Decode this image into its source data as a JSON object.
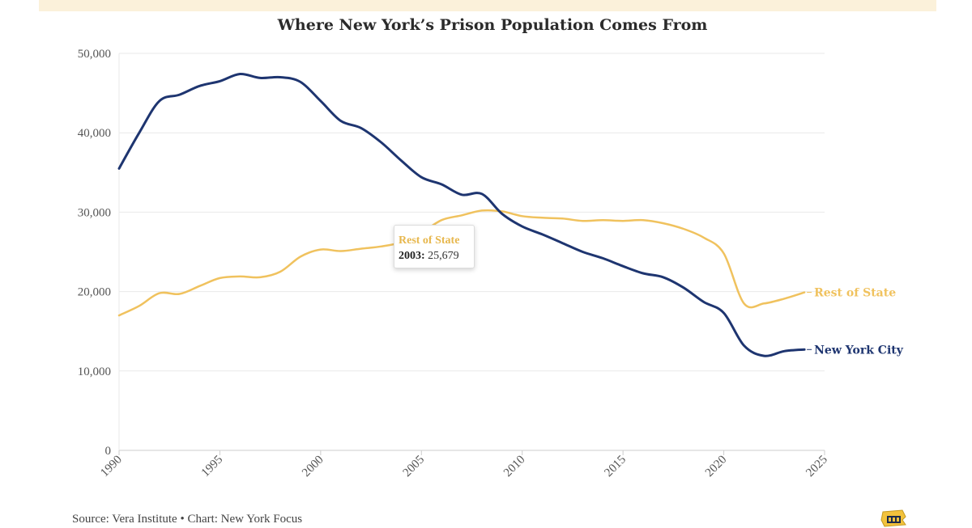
{
  "colors": {
    "new_york_city": "#1e3570",
    "rest_of_state": "#f0c25e",
    "grid": "#e9e9e9",
    "axis": "#cccccc"
  },
  "tooltip": {
    "series": "Rest of State",
    "year": "2003:",
    "value": "25,679"
  },
  "source": "Source: Vera Institute • Chart: New York Focus",
  "logo_icon": "new-york-focus-logo-icon",
  "chart_data": {
    "type": "line",
    "title": "Where New York’s Prison Population Comes From",
    "xlabel": "",
    "ylabel": "",
    "xlim": [
      1990,
      2025
    ],
    "ylim": [
      0,
      50000
    ],
    "x_ticks": [
      "1990",
      "1995",
      "2000",
      "2005",
      "2010",
      "2015",
      "2020",
      "2025"
    ],
    "y_ticks": [
      "0",
      "10,000",
      "20,000",
      "30,000",
      "40,000",
      "50,000"
    ],
    "grid": "horizontal",
    "legend": "end-of-line labels",
    "series": [
      {
        "name": "New York City",
        "x": [
          1990,
          1991,
          1992,
          1993,
          1994,
          1995,
          1996,
          1997,
          1998,
          1999,
          2000,
          2001,
          2002,
          2003,
          2004,
          2005,
          2006,
          2007,
          2008,
          2009,
          2010,
          2011,
          2012,
          2013,
          2014,
          2015,
          2016,
          2017,
          2018,
          2019,
          2020,
          2021,
          2022,
          2023,
          2024
        ],
        "values": [
          35500,
          40000,
          44000,
          44800,
          45900,
          46500,
          47400,
          46900,
          47000,
          46400,
          44000,
          41500,
          40600,
          38800,
          36500,
          34400,
          33500,
          32200,
          32300,
          29800,
          28200,
          27200,
          26100,
          25000,
          24200,
          23200,
          22300,
          21800,
          20500,
          18700,
          17300,
          13200,
          11900,
          12500,
          12700
        ]
      },
      {
        "name": "Rest of State",
        "x": [
          1990,
          1991,
          1992,
          1993,
          1994,
          1995,
          1996,
          1997,
          1998,
          1999,
          2000,
          2001,
          2002,
          2003,
          2004,
          2005,
          2006,
          2007,
          2008,
          2009,
          2010,
          2011,
          2012,
          2013,
          2014,
          2015,
          2016,
          2017,
          2018,
          2019,
          2020,
          2021,
          2022,
          2023,
          2024
        ],
        "values": [
          17000,
          18200,
          19800,
          19700,
          20700,
          21700,
          21900,
          21800,
          22500,
          24400,
          25300,
          25100,
          25400,
          25679,
          26200,
          27400,
          29000,
          29600,
          30200,
          30100,
          29500,
          29300,
          29200,
          28900,
          29000,
          28900,
          29000,
          28600,
          27900,
          26800,
          24800,
          18500,
          18500,
          19100,
          19900
        ]
      }
    ]
  }
}
